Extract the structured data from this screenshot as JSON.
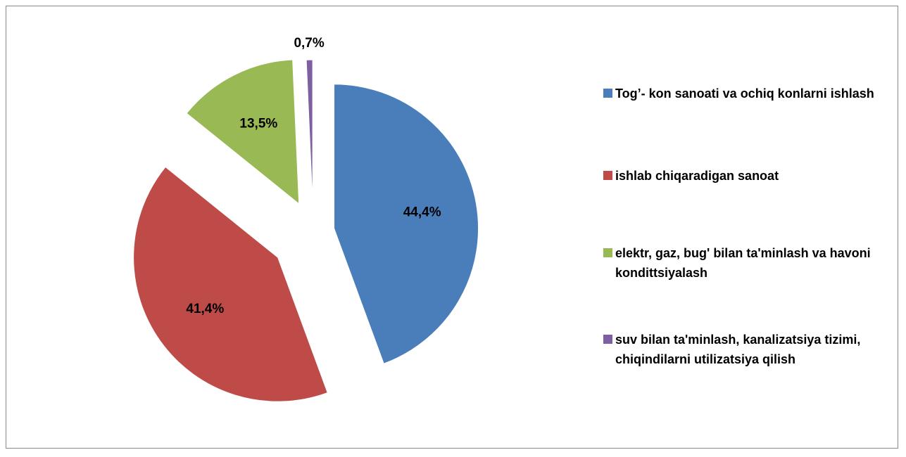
{
  "chart_data": {
    "type": "pie",
    "categories": [
      "Tog’- kon sanoati va ochiq konlarni ishlash",
      "ishlab chiqaradigan  sanoat",
      "elektr, gaz, bug'  bilan ta'minlash va havoni kondittsiyalash",
      "suv bilan ta'minlash, kanalizatsiya tizimi, chiqindilarni utilizatsiya qilish"
    ],
    "values": [
      44.4,
      41.4,
      13.5,
      0.7
    ],
    "value_labels": [
      "44,4%",
      "41,4%",
      "13,5%",
      "0,7%"
    ],
    "colors": [
      "#4a7ebb",
      "#be4b48",
      "#98b954",
      "#7d60a0"
    ],
    "legend": "right"
  }
}
